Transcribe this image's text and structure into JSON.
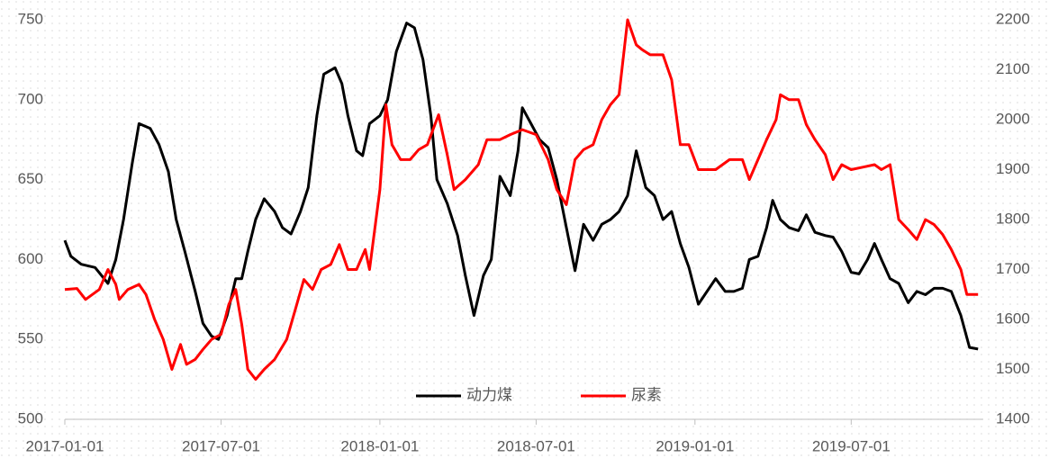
{
  "chart_data": {
    "type": "line",
    "xlim": [
      "2017-01-01",
      "2019-12-01"
    ],
    "xticks": [
      "2017-01-01",
      "2017-07-01",
      "2018-01-01",
      "2018-07-01",
      "2019-01-01",
      "2019-07-01"
    ],
    "ylim": [
      500,
      750
    ],
    "yticks": [
      500,
      550,
      600,
      650,
      700,
      750
    ],
    "y2lim": [
      1400,
      2200
    ],
    "y2ticks": [
      1400,
      1500,
      1600,
      1700,
      1800,
      1900,
      2000,
      2100,
      2200
    ],
    "legend": "bottom",
    "series": [
      {
        "name": "动力煤",
        "color": "#000000",
        "axis": "y",
        "x": [
          "2017-01-01",
          "2017-01-08",
          "2017-01-20",
          "2017-02-05",
          "2017-02-20",
          "2017-03-01",
          "2017-03-10",
          "2017-03-20",
          "2017-03-28",
          "2017-04-10",
          "2017-04-20",
          "2017-05-01",
          "2017-05-10",
          "2017-05-20",
          "2017-06-01",
          "2017-06-10",
          "2017-06-20",
          "2017-06-28",
          "2017-07-08",
          "2017-07-18",
          "2017-07-25",
          "2017-08-01",
          "2017-08-10",
          "2017-08-20",
          "2017-09-01",
          "2017-09-10",
          "2017-09-20",
          "2017-10-01",
          "2017-10-10",
          "2017-10-20",
          "2017-10-28",
          "2017-11-10",
          "2017-11-18",
          "2017-11-25",
          "2017-12-05",
          "2017-12-12",
          "2017-12-20",
          "2018-01-01",
          "2018-01-10",
          "2018-01-20",
          "2018-02-01",
          "2018-02-10",
          "2018-02-20",
          "2018-03-01",
          "2018-03-08",
          "2018-03-20",
          "2018-04-01",
          "2018-04-10",
          "2018-04-20",
          "2018-05-01",
          "2018-05-10",
          "2018-05-20",
          "2018-06-01",
          "2018-06-10",
          "2018-06-15",
          "2018-06-25",
          "2018-07-05",
          "2018-07-15",
          "2018-07-25",
          "2018-08-05",
          "2018-08-15",
          "2018-08-25",
          "2018-09-05",
          "2018-09-15",
          "2018-09-25",
          "2018-10-05",
          "2018-10-15",
          "2018-10-25",
          "2018-11-05",
          "2018-11-15",
          "2018-11-25",
          "2018-12-05",
          "2018-12-15",
          "2018-12-25",
          "2019-01-05",
          "2019-01-15",
          "2019-01-25",
          "2019-02-05",
          "2019-02-15",
          "2019-02-25",
          "2019-03-05",
          "2019-03-15",
          "2019-03-25",
          "2019-04-01",
          "2019-04-10",
          "2019-04-20",
          "2019-05-01",
          "2019-05-10",
          "2019-05-20",
          "2019-06-01",
          "2019-06-10",
          "2019-06-20",
          "2019-07-01",
          "2019-07-10",
          "2019-07-20",
          "2019-07-28",
          "2019-08-05",
          "2019-08-15",
          "2019-08-25",
          "2019-09-05",
          "2019-09-15",
          "2019-09-25",
          "2019-10-05",
          "2019-10-15",
          "2019-10-25",
          "2019-11-05",
          "2019-11-15",
          "2019-11-25"
        ],
        "values": [
          612,
          602,
          597,
          595,
          585,
          600,
          625,
          660,
          685,
          682,
          672,
          655,
          625,
          605,
          580,
          560,
          552,
          550,
          565,
          588,
          588,
          605,
          625,
          638,
          630,
          620,
          616,
          630,
          645,
          690,
          716,
          720,
          710,
          690,
          668,
          665,
          685,
          690,
          700,
          730,
          748,
          745,
          725,
          690,
          650,
          635,
          615,
          590,
          565,
          590,
          600,
          652,
          640,
          668,
          695,
          685,
          675,
          670,
          650,
          620,
          593,
          622,
          612,
          622,
          625,
          630,
          640,
          668,
          645,
          640,
          625,
          630,
          610,
          595,
          572,
          580,
          588,
          580,
          580,
          582,
          600,
          602,
          620,
          637,
          625,
          620,
          618,
          628,
          617,
          615,
          614,
          605,
          592,
          591,
          600,
          610,
          600,
          588,
          585,
          573,
          580,
          578,
          582,
          582,
          580,
          565,
          545,
          544
        ]
      },
      {
        "name": "尿素",
        "color": "#ff0000",
        "axis": "y2",
        "x": [
          "2017-01-01",
          "2017-01-15",
          "2017-01-25",
          "2017-02-10",
          "2017-02-20",
          "2017-03-01",
          "2017-03-05",
          "2017-03-15",
          "2017-03-28",
          "2017-04-05",
          "2017-04-15",
          "2017-04-25",
          "2017-05-05",
          "2017-05-15",
          "2017-05-22",
          "2017-06-01",
          "2017-06-10",
          "2017-06-20",
          "2017-07-01",
          "2017-07-10",
          "2017-07-18",
          "2017-07-25",
          "2017-08-01",
          "2017-08-10",
          "2017-08-20",
          "2017-09-01",
          "2017-09-15",
          "2017-09-25",
          "2017-10-05",
          "2017-10-15",
          "2017-10-25",
          "2017-11-05",
          "2017-11-15",
          "2017-11-25",
          "2017-12-05",
          "2017-12-15",
          "2017-12-20",
          "2018-01-01",
          "2018-01-08",
          "2018-01-15",
          "2018-01-25",
          "2018-02-05",
          "2018-02-15",
          "2018-02-25",
          "2018-03-10",
          "2018-03-20",
          "2018-03-28",
          "2018-04-10",
          "2018-04-25",
          "2018-05-05",
          "2018-05-20",
          "2018-06-01",
          "2018-06-15",
          "2018-07-01",
          "2018-07-15",
          "2018-07-25",
          "2018-08-05",
          "2018-08-15",
          "2018-08-25",
          "2018-09-05",
          "2018-09-15",
          "2018-09-25",
          "2018-10-05",
          "2018-10-15",
          "2018-10-25",
          "2018-11-01",
          "2018-11-10",
          "2018-11-25",
          "2018-12-05",
          "2018-12-15",
          "2018-12-25",
          "2019-01-05",
          "2019-01-15",
          "2019-01-25",
          "2019-02-10",
          "2019-02-25",
          "2019-03-05",
          "2019-03-15",
          "2019-03-25",
          "2019-04-05",
          "2019-04-10",
          "2019-04-20",
          "2019-05-01",
          "2019-05-10",
          "2019-05-20",
          "2019-06-01",
          "2019-06-10",
          "2019-06-20",
          "2019-07-01",
          "2019-07-15",
          "2019-07-28",
          "2019-08-05",
          "2019-08-15",
          "2019-08-25",
          "2019-09-05",
          "2019-09-15",
          "2019-09-25",
          "2019-10-05",
          "2019-10-15",
          "2019-10-25",
          "2019-11-05",
          "2019-11-12",
          "2019-11-25"
        ],
        "values": [
          1660,
          1662,
          1640,
          1660,
          1700,
          1670,
          1640,
          1660,
          1670,
          1650,
          1600,
          1560,
          1500,
          1550,
          1510,
          1520,
          1540,
          1560,
          1570,
          1630,
          1660,
          1590,
          1500,
          1480,
          1500,
          1520,
          1560,
          1620,
          1680,
          1660,
          1700,
          1710,
          1750,
          1700,
          1700,
          1740,
          1700,
          1860,
          2030,
          1950,
          1920,
          1920,
          1940,
          1950,
          2010,
          1930,
          1860,
          1880,
          1910,
          1960,
          1960,
          1970,
          1980,
          1970,
          1920,
          1860,
          1830,
          1920,
          1940,
          1950,
          2000,
          2030,
          2050,
          2200,
          2150,
          2140,
          2130,
          2130,
          2080,
          1950,
          1950,
          1900,
          1900,
          1900,
          1920,
          1920,
          1880,
          1920,
          1960,
          2000,
          2050,
          2040,
          2040,
          1990,
          1960,
          1930,
          1880,
          1910,
          1900,
          1905,
          1910,
          1900,
          1910,
          1800,
          1780,
          1760,
          1800,
          1790,
          1770,
          1740,
          1700,
          1650,
          1650
        ]
      }
    ]
  }
}
